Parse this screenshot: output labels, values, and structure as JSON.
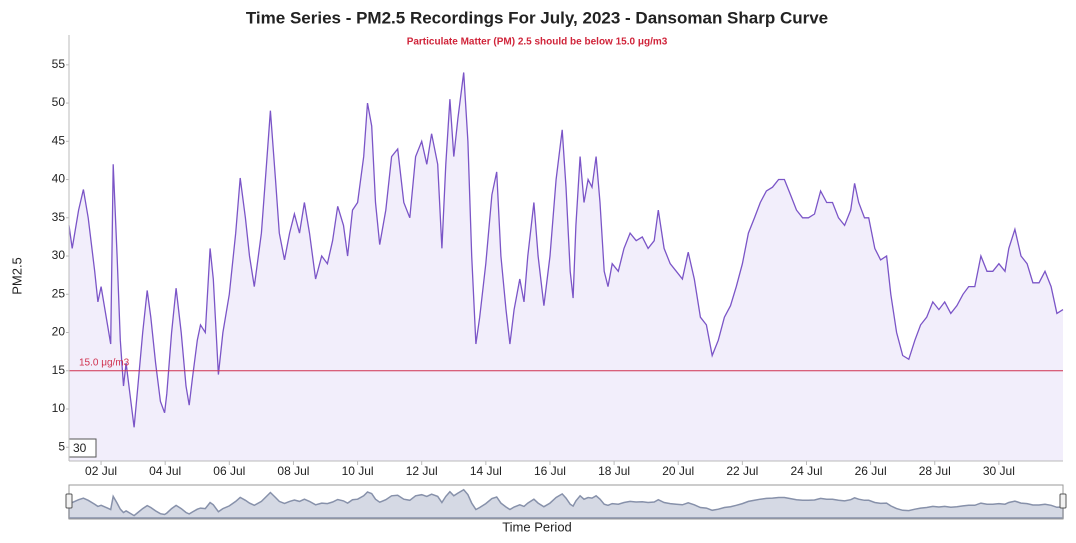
{
  "chart_data": {
    "type": "area",
    "title": "Time Series - PM2.5 Recordings For July, 2023 - Dansoman Sharp Curve",
    "subtitle": "Particulate Matter (PM) 2.5 should be below 15.0 μg/m3",
    "y_label": "PM2.5",
    "x_label": "Time Period",
    "period_input": "30",
    "threshold": {
      "value": 15,
      "label": "15.0 μg/m3",
      "color": "#d0314f"
    },
    "xlim": [
      1,
      32
    ],
    "xticks": [
      {
        "value": 2,
        "label": "02 Jul"
      },
      {
        "value": 4,
        "label": "04 Jul"
      },
      {
        "value": 6,
        "label": "06 Jul"
      },
      {
        "value": 8,
        "label": "08 Jul"
      },
      {
        "value": 10,
        "label": "10 Jul"
      },
      {
        "value": 12,
        "label": "12 Jul"
      },
      {
        "value": 14,
        "label": "14 Jul"
      },
      {
        "value": 16,
        "label": "16 Jul"
      },
      {
        "value": 18,
        "label": "18 Jul"
      },
      {
        "value": 20,
        "label": "20 Jul"
      },
      {
        "value": 22,
        "label": "22 Jul"
      },
      {
        "value": 24,
        "label": "24 Jul"
      },
      {
        "value": 26,
        "label": "26 Jul"
      },
      {
        "value": 28,
        "label": "28 Jul"
      },
      {
        "value": 30,
        "label": "30 Jul"
      }
    ],
    "ylim": [
      3.2,
      58.9
    ],
    "yticks": [
      5,
      10,
      15,
      20,
      25,
      30,
      35,
      40,
      45,
      50,
      55
    ],
    "x": [
      1.0,
      1.1,
      1.3,
      1.45,
      1.6,
      1.8,
      1.9,
      2.0,
      2.2,
      2.3,
      2.38,
      2.5,
      2.6,
      2.7,
      2.78,
      2.9,
      3.03,
      3.15,
      3.3,
      3.44,
      3.55,
      3.7,
      3.85,
      3.98,
      4.05,
      4.2,
      4.34,
      4.5,
      4.65,
      4.75,
      4.85,
      5.0,
      5.1,
      5.25,
      5.4,
      5.5,
      5.66,
      5.8,
      6.0,
      6.2,
      6.34,
      6.5,
      6.63,
      6.78,
      7.0,
      7.16,
      7.28,
      7.44,
      7.56,
      7.72,
      7.88,
      8.03,
      8.19,
      8.34,
      8.5,
      8.69,
      8.88,
      9.06,
      9.22,
      9.38,
      9.56,
      9.69,
      9.84,
      10.0,
      10.19,
      10.31,
      10.44,
      10.56,
      10.69,
      10.88,
      11.06,
      11.25,
      11.44,
      11.63,
      11.81,
      12.0,
      12.16,
      12.31,
      12.5,
      12.63,
      12.75,
      12.88,
      13.0,
      13.13,
      13.31,
      13.44,
      13.56,
      13.69,
      13.81,
      14.0,
      14.19,
      14.34,
      14.47,
      14.63,
      14.75,
      14.88,
      15.06,
      15.19,
      15.31,
      15.5,
      15.63,
      15.81,
      16.0,
      16.19,
      16.38,
      16.5,
      16.63,
      16.72,
      16.81,
      16.94,
      17.06,
      17.19,
      17.31,
      17.44,
      17.56,
      17.69,
      17.81,
      17.94,
      18.13,
      18.31,
      18.5,
      18.69,
      18.88,
      19.06,
      19.25,
      19.38,
      19.56,
      19.75,
      19.94,
      20.13,
      20.31,
      20.5,
      20.69,
      20.88,
      21.06,
      21.25,
      21.44,
      21.63,
      21.81,
      22.0,
      22.19,
      22.38,
      22.56,
      22.75,
      22.94,
      23.13,
      23.31,
      23.5,
      23.69,
      23.88,
      24.06,
      24.25,
      24.44,
      24.63,
      24.81,
      25.0,
      25.19,
      25.38,
      25.5,
      25.63,
      25.81,
      25.94,
      26.13,
      26.31,
      26.5,
      26.63,
      26.81,
      27.0,
      27.19,
      27.38,
      27.56,
      27.75,
      27.94,
      28.13,
      28.31,
      28.5,
      28.69,
      28.88,
      29.06,
      29.25,
      29.44,
      29.63,
      29.81,
      30.0,
      30.19,
      30.31,
      30.5,
      30.69,
      30.88,
      31.06,
      31.25,
      31.44,
      31.63,
      31.81,
      32.0
    ],
    "series": [
      {
        "color": "#7b55c7",
        "fill": "#f2eefb",
        "values": [
          34,
          31,
          36,
          38.7,
          35,
          28,
          24,
          26,
          21,
          18.5,
          42,
          30,
          19,
          13,
          16,
          12,
          7.6,
          13,
          20,
          25.5,
          22,
          16,
          11,
          9.5,
          12,
          20,
          25.8,
          20,
          13,
          10.5,
          14,
          19,
          21,
          20,
          31,
          27,
          14.5,
          20,
          25,
          33,
          40.2,
          35,
          30,
          26,
          33,
          42,
          49,
          40,
          33,
          29.5,
          33,
          35.5,
          33,
          37,
          33,
          27,
          30,
          29,
          32,
          36.5,
          34,
          30,
          36,
          37,
          43,
          50,
          47,
          37,
          31.5,
          36,
          43,
          44,
          37,
          35,
          43,
          45,
          42,
          46,
          42,
          31,
          42,
          50.5,
          43,
          48,
          54,
          45,
          30,
          18.5,
          22,
          29,
          38,
          41,
          30,
          23,
          18.5,
          23,
          27,
          24,
          30,
          37,
          30,
          23.5,
          30,
          40,
          46.5,
          39,
          28,
          24.5,
          34,
          43,
          37,
          40,
          39,
          43,
          37,
          28,
          26,
          29,
          28,
          31,
          33,
          32,
          32.5,
          31,
          32,
          36,
          31,
          29,
          28,
          27,
          30.5,
          27,
          22,
          21,
          17,
          19,
          22,
          23.5,
          26,
          29,
          33,
          35,
          37,
          38.5,
          39,
          40,
          40,
          38,
          36,
          35,
          35,
          35.5,
          38.5,
          37,
          37,
          35,
          34,
          36,
          39.5,
          37,
          35,
          35,
          31,
          29.5,
          30,
          25,
          20,
          17,
          16.5,
          19,
          21,
          22,
          24,
          23,
          24,
          22.5,
          23.5,
          25,
          26,
          26,
          30,
          28,
          28,
          29,
          28,
          31,
          33.5,
          30,
          29,
          26.5,
          26.5,
          28,
          26,
          22.5,
          23
        ]
      }
    ]
  }
}
